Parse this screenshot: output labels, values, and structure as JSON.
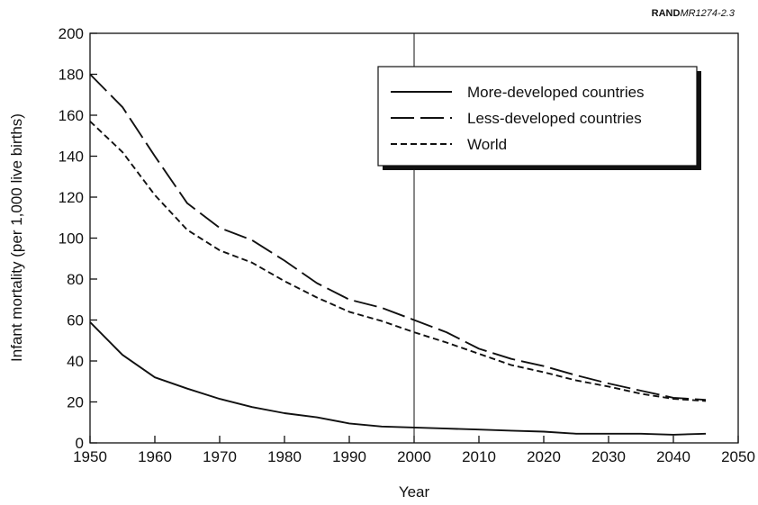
{
  "figure_code": {
    "prefix": "RAND",
    "suffix": "MR1274-2.3"
  },
  "chart_data": {
    "type": "line",
    "xlabel": "Year",
    "ylabel": "Infant mortality (per 1,000 live births)",
    "xlim": [
      1950,
      2050
    ],
    "ylim": [
      0,
      200
    ],
    "x_ticks": [
      1950,
      1960,
      1970,
      1980,
      1990,
      2000,
      2010,
      2020,
      2030,
      2040,
      2050
    ],
    "y_ticks": [
      0,
      20,
      40,
      60,
      80,
      100,
      120,
      140,
      160,
      180,
      200
    ],
    "reference_line_x": 2000,
    "grid": false,
    "legend_position": "top-right",
    "x": [
      1950,
      1955,
      1960,
      1965,
      1970,
      1975,
      1980,
      1985,
      1990,
      1995,
      2000,
      2005,
      2010,
      2015,
      2020,
      2025,
      2030,
      2035,
      2040,
      2045
    ],
    "series": [
      {
        "name": "More-developed countries",
        "style": "solid",
        "values": [
          59,
          43,
          32,
          26.5,
          21.5,
          17.5,
          14.5,
          12.5,
          9.5,
          8,
          7.5,
          7,
          6.5,
          6,
          5.5,
          4.5,
          4.5,
          4.5,
          4,
          4.5
        ]
      },
      {
        "name": "Less-developed countries",
        "style": "long-dash",
        "values": [
          180,
          164,
          140,
          117,
          105,
          99,
          89,
          78,
          70,
          66,
          60,
          54,
          46,
          41,
          37.5,
          33,
          29,
          25.5,
          22,
          21
        ]
      },
      {
        "name": "World",
        "style": "short-dash",
        "values": [
          157,
          142,
          121,
          104,
          94,
          88,
          79,
          71,
          64,
          59.5,
          54,
          49,
          43.5,
          38,
          34.5,
          30.5,
          27.5,
          24,
          21.5,
          20.5
        ]
      }
    ]
  }
}
